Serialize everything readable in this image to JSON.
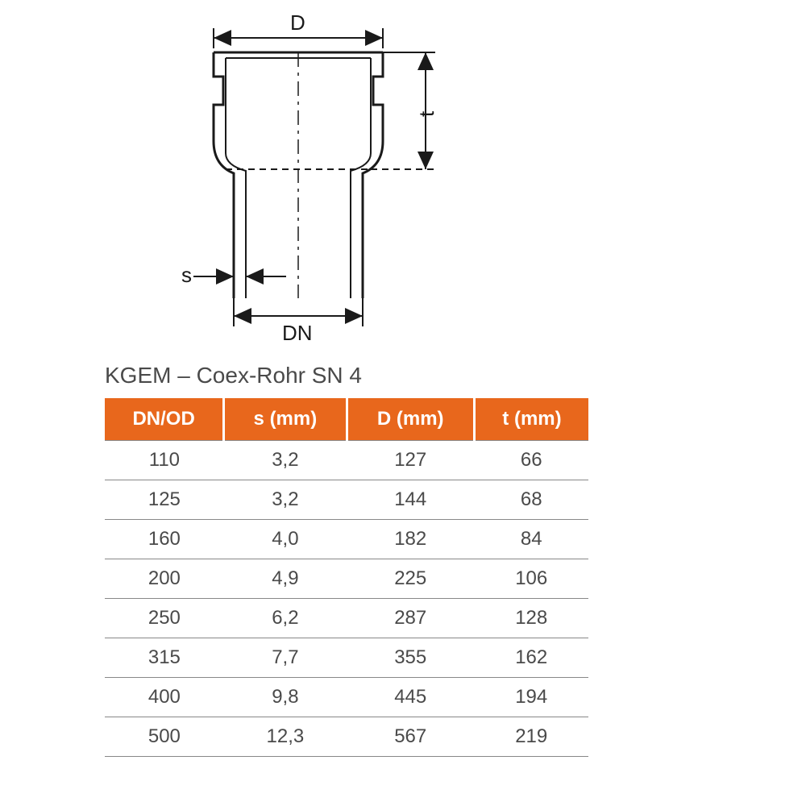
{
  "diagram": {
    "labels": {
      "D": "D",
      "t": "t",
      "s": "s",
      "DN": "DN"
    },
    "stroke_color": "#1a1a1a",
    "stroke_width_main": 3,
    "stroke_width_thin": 2,
    "fontsize": 26
  },
  "table": {
    "title": "KGEM – Coex-Rohr SN 4",
    "title_fontsize": 28,
    "title_color": "#4a4a4a",
    "header_bg": "#e8671c",
    "header_fg": "#ffffff",
    "header_fontsize": 24,
    "cell_fontsize": 24,
    "cell_color": "#4a4a4a",
    "border_color": "#888888",
    "columns": [
      "DN/OD",
      "s (mm)",
      "D (mm)",
      "t (mm)"
    ],
    "rows": [
      [
        "110",
        "3,2",
        "127",
        "66"
      ],
      [
        "125",
        "3,2",
        "144",
        "68"
      ],
      [
        "160",
        "4,0",
        "182",
        "84"
      ],
      [
        "200",
        "4,9",
        "225",
        "106"
      ],
      [
        "250",
        "6,2",
        "287",
        "128"
      ],
      [
        "315",
        "7,7",
        "355",
        "162"
      ],
      [
        "400",
        "9,8",
        "445",
        "194"
      ],
      [
        "500",
        "12,3",
        "567",
        "219"
      ]
    ]
  }
}
